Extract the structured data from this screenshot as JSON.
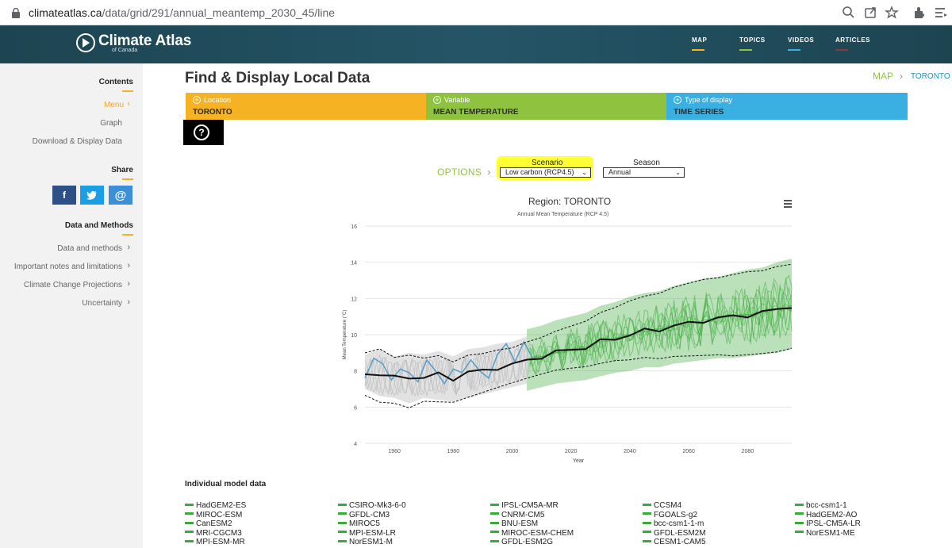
{
  "browser": {
    "url_domain": "climateatlas.ca",
    "url_path": "/data/grid/291/annual_meantemp_2030_45/line"
  },
  "site": {
    "logo_title": "Climate Atlas",
    "logo_subtitle": "of Canada",
    "nav": [
      {
        "label": "MAP",
        "color": "#f5b324"
      },
      {
        "label": "TOPICS",
        "color": "#8fc33f"
      },
      {
        "label": "VIDEOS",
        "color": "#3ab0e2"
      },
      {
        "label": "ARTICLES",
        "color": "#c0392b"
      }
    ]
  },
  "sidebar": {
    "contents_heading": "Contents",
    "contents_items": [
      "Menu",
      "Graph",
      "Download & Display Data"
    ],
    "share_heading": "Share",
    "share_buttons": [
      {
        "icon": "facebook-icon",
        "glyph": "f",
        "color": "#2d5187"
      },
      {
        "icon": "twitter-icon",
        "glyph": "🐦",
        "color": "#1a9fe6"
      },
      {
        "icon": "email-icon",
        "glyph": "@",
        "color": "#3c8fd4"
      }
    ],
    "methods_heading": "Data and Methods",
    "methods_items": [
      "Data and methods",
      "Important notes and limitations",
      "Climate Change Projections",
      "Uncertainty"
    ]
  },
  "main": {
    "title": "Find & Display Local Data",
    "breadcrumb_map": "MAP",
    "breadcrumb_place": "TORONTO",
    "selectors": [
      {
        "label": "Location",
        "value": "TORONTO",
        "color": "#f5b324"
      },
      {
        "label": "Variable",
        "value": "MEAN TEMPERATURE",
        "color": "#8fc33f"
      },
      {
        "label": "Type of display",
        "value": "TIME SERIES",
        "color": "#3ab0e2"
      }
    ],
    "help_glyph": "?",
    "options_label": "OPTIONS",
    "scenario_label": "Scenario",
    "scenario_value": "Low carbon (RCP4.5)",
    "season_label": "Season",
    "season_value": "Annual"
  },
  "chart_data": {
    "type": "line",
    "title": "Region: TORONTO",
    "subtitle": "Annual Mean Temperature (RCP 4.5)",
    "xlabel": "Year",
    "ylabel": "Mean Temperature (°C)",
    "xlim": [
      1950,
      2095
    ],
    "ylim": [
      4,
      16
    ],
    "xticks": [
      1960,
      1980,
      2000,
      2020,
      2040,
      2060,
      2080
    ],
    "yticks": [
      4,
      6,
      8,
      10,
      12,
      14,
      16
    ],
    "series": [
      {
        "name": "ensemble-mean",
        "color": "#111111",
        "x": [
          1950,
          1955,
          1960,
          1965,
          1970,
          1975,
          1980,
          1985,
          1990,
          1995,
          2000,
          2005,
          2010,
          2015,
          2020,
          2025,
          2030,
          2035,
          2040,
          2045,
          2050,
          2055,
          2060,
          2065,
          2070,
          2075,
          2080,
          2085,
          2090,
          2095
        ],
        "y": [
          7.9,
          7.8,
          7.6,
          7.7,
          7.6,
          7.8,
          7.6,
          7.9,
          8.0,
          8.2,
          8.3,
          8.6,
          8.8,
          9.0,
          9.2,
          9.3,
          9.6,
          9.8,
          10.0,
          10.2,
          10.3,
          10.5,
          10.6,
          10.8,
          10.9,
          11.0,
          11.1,
          11.2,
          11.4,
          11.6
        ]
      },
      {
        "name": "upper-range",
        "color": "#111111",
        "x": [
          1950,
          1955,
          1960,
          1965,
          1970,
          1975,
          1980,
          1985,
          1990,
          1995,
          2000,
          2005,
          2010,
          2015,
          2020,
          2025,
          2030,
          2035,
          2040,
          2045,
          2050,
          2055,
          2060,
          2065,
          2070,
          2075,
          2080,
          2085,
          2090,
          2095
        ],
        "y": [
          8.9,
          9.2,
          8.8,
          9.0,
          8.9,
          9.1,
          8.8,
          9.2,
          9.3,
          9.5,
          9.6,
          9.9,
          10.1,
          10.4,
          10.6,
          10.8,
          11.2,
          11.4,
          11.7,
          11.9,
          12.0,
          12.3,
          12.5,
          12.7,
          12.8,
          13.0,
          13.2,
          13.3,
          13.6,
          13.8
        ]
      },
      {
        "name": "lower-range",
        "color": "#111111",
        "x": [
          1950,
          1955,
          1960,
          1965,
          1970,
          1975,
          1980,
          1985,
          1990,
          1995,
          2000,
          2005,
          2010,
          2015,
          2020,
          2025,
          2030,
          2035,
          2040,
          2045,
          2050,
          2055,
          2060,
          2065,
          2070,
          2075,
          2080,
          2085,
          2090,
          2095
        ],
        "y": [
          7.0,
          6.6,
          6.5,
          6.2,
          6.5,
          6.4,
          6.3,
          6.5,
          6.7,
          6.9,
          7.1,
          7.3,
          7.5,
          7.7,
          7.8,
          7.9,
          8.1,
          8.3,
          8.4,
          8.6,
          8.6,
          8.8,
          8.9,
          9.0,
          9.1,
          9.1,
          9.2,
          9.3,
          9.4,
          9.6
        ]
      },
      {
        "name": "observed",
        "color": "#5aa0c8",
        "x": [
          1950,
          1953,
          1956,
          1959,
          1962,
          1965,
          1968,
          1971,
          1974,
          1977,
          1980,
          1983,
          1986,
          1989,
          1992,
          1995,
          1998,
          2001,
          2004,
          2007
        ],
        "y": [
          7.6,
          8.7,
          8.4,
          7.5,
          8.1,
          7.9,
          7.4,
          8.6,
          8.0,
          7.3,
          8.1,
          7.9,
          8.6,
          8.0,
          7.6,
          8.9,
          9.5,
          8.5,
          9.6,
          8.7
        ]
      }
    ],
    "model_band_color": "#3aaa3a"
  },
  "models": {
    "heading": "Individual model data",
    "columns": [
      [
        "HadGEM2-ES",
        "MIROC-ESM",
        "CanESM2",
        "MRI-CGCM3",
        "MPI-ESM-MR"
      ],
      [
        "CSIRO-Mk3-6-0",
        "GFDL-CM3",
        "MIROC5",
        "MPI-ESM-LR",
        "NorESM1-M"
      ],
      [
        "IPSL-CM5A-MR",
        "CNRM-CM5",
        "BNU-ESM",
        "MIROC-ESM-CHEM",
        "GFDL-ESM2G"
      ],
      [
        "CCSM4",
        "FGOALS-g2",
        "bcc-csm1-1-m",
        "GFDL-ESM2M",
        "CESM1-CAM5"
      ],
      [
        "bcc-csm1-1",
        "HadGEM2-AO",
        "IPSL-CM5A-LR",
        "NorESM1-ME"
      ]
    ]
  }
}
